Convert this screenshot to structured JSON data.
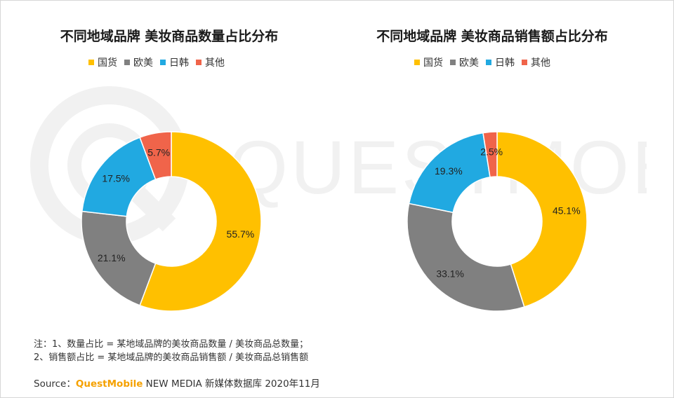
{
  "colors": {
    "guohuo": "#FFC000",
    "oumei": "#808080",
    "rihan": "#21A9E1",
    "other": "#F0644A"
  },
  "watermark_text": "QUESTMOBILE",
  "chart_data": [
    {
      "type": "pie",
      "title": "不同地域品牌 美妆商品数量占比分布",
      "categories": [
        "国货",
        "欧美",
        "日韩",
        "其他"
      ],
      "values": [
        55.7,
        21.1,
        17.5,
        5.7
      ],
      "labels": [
        "55.7%",
        "21.1%",
        "17.5%",
        "5.7%"
      ],
      "legend": "top",
      "donut": true
    },
    {
      "type": "pie",
      "title": "不同地域品牌 美妆商品销售额占比分布",
      "categories": [
        "国货",
        "欧美",
        "日韩",
        "其他"
      ],
      "values": [
        45.1,
        33.1,
        19.3,
        2.5
      ],
      "labels": [
        "45.1%",
        "33.1%",
        "19.3%",
        "2.5%"
      ],
      "legend": "top",
      "donut": true
    }
  ],
  "notes": {
    "line1": "注：1、数量占比 = 某地域品牌的美妆商品数量 / 美妆商品总数量；",
    "line2": "2、销售额占比 = 某地域品牌的美妆商品销售额 / 美妆商品总销售额"
  },
  "source": {
    "prefix": "Source：",
    "brand": "QuestMobile",
    "suffix": " NEW MEDIA 新媒体数据库 2020年11月"
  }
}
